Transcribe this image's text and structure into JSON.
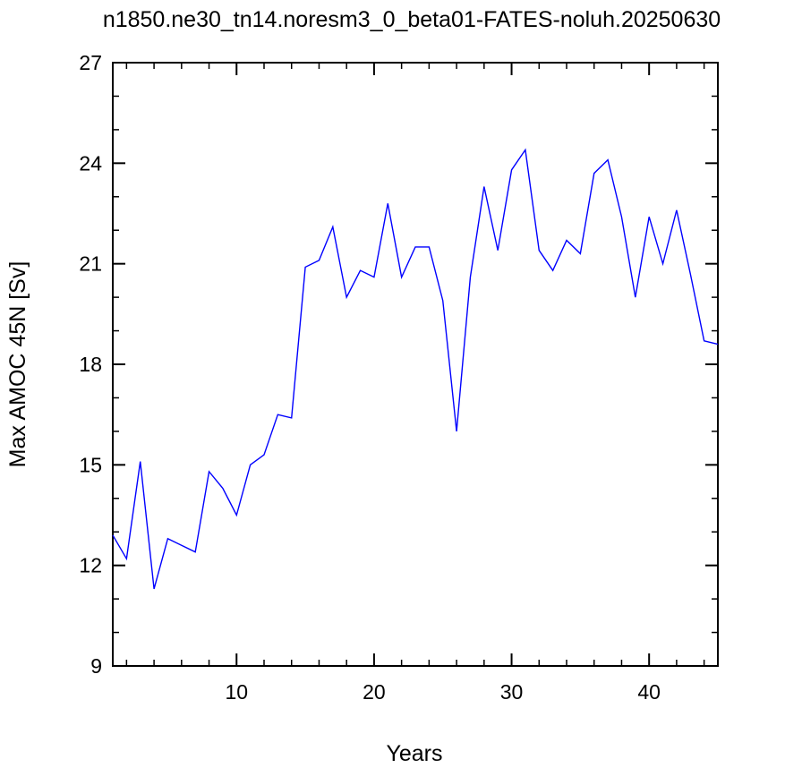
{
  "chart_data": {
    "type": "line",
    "title": "n1850.ne30_tn14.noresm3_0_beta01-FATES-noluh.20250630",
    "xlabel": "Years",
    "ylabel": "Max AMOC 45N [Sv]",
    "xlim": [
      1,
      45
    ],
    "ylim": [
      9,
      27
    ],
    "xticks": [
      10,
      20,
      30,
      40
    ],
    "xtick_labels": [
      "10",
      "20",
      "30",
      "40"
    ],
    "yticks": [
      9,
      12,
      15,
      18,
      21,
      24,
      27
    ],
    "ytick_labels": [
      "9",
      "12",
      "15",
      "18",
      "21",
      "24",
      "27"
    ],
    "x_minor_step": 2,
    "y_minor_step": 1,
    "grid": false,
    "line_color": "#0000ff",
    "x": [
      1,
      2,
      3,
      4,
      5,
      6,
      7,
      8,
      9,
      10,
      11,
      12,
      13,
      14,
      15,
      16,
      17,
      18,
      19,
      20,
      21,
      22,
      23,
      24,
      25,
      26,
      27,
      28,
      29,
      30,
      31,
      32,
      33,
      34,
      35,
      36,
      37,
      38,
      39,
      40,
      41,
      42,
      43,
      44,
      45
    ],
    "y": [
      12.9,
      12.2,
      15.1,
      11.3,
      12.8,
      12.6,
      12.4,
      14.8,
      14.3,
      13.5,
      15.0,
      15.3,
      16.5,
      16.4,
      20.9,
      21.1,
      22.1,
      20.0,
      20.8,
      20.6,
      22.8,
      20.6,
      21.5,
      21.5,
      19.9,
      16.0,
      20.6,
      23.3,
      21.4,
      23.8,
      24.4,
      21.4,
      20.8,
      21.7,
      21.3,
      23.7,
      24.1,
      22.4,
      20.0,
      22.4,
      21.0,
      22.6,
      20.7,
      18.7,
      18.6
    ]
  }
}
